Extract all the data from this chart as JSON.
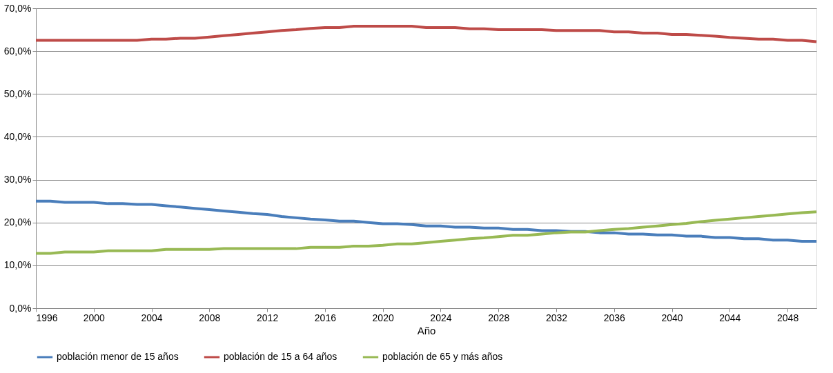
{
  "chart_data": {
    "type": "line",
    "xlabel": "Año",
    "x": [
      1996,
      1997,
      1998,
      1999,
      2000,
      2001,
      2002,
      2003,
      2004,
      2005,
      2006,
      2007,
      2008,
      2009,
      2010,
      2011,
      2012,
      2013,
      2014,
      2015,
      2016,
      2017,
      2018,
      2019,
      2020,
      2021,
      2022,
      2023,
      2024,
      2025,
      2026,
      2027,
      2028,
      2029,
      2030,
      2031,
      2032,
      2033,
      2034,
      2035,
      2036,
      2037,
      2038,
      2039,
      2040,
      2041,
      2042,
      2043,
      2044,
      2045,
      2046,
      2047,
      2048,
      2049,
      2050
    ],
    "xlim": [
      1996,
      2050
    ],
    "xticks": [
      1996,
      2000,
      2004,
      2008,
      2012,
      2016,
      2020,
      2024,
      2028,
      2032,
      2036,
      2040,
      2044,
      2048
    ],
    "ylim": [
      0,
      70
    ],
    "yticks": [
      {
        "value": 0,
        "label": "0,0%"
      },
      {
        "value": 10,
        "label": "10,0%"
      },
      {
        "value": 20,
        "label": "20,0%"
      },
      {
        "value": 30,
        "label": "30,0%"
      },
      {
        "value": 40,
        "label": "40,0%"
      },
      {
        "value": 50,
        "label": "50,0%"
      },
      {
        "value": 60,
        "label": "60,0%"
      },
      {
        "value": 70,
        "label": "70,0%"
      }
    ],
    "grid": "y",
    "legend": "bottom",
    "marker": "none",
    "line_style": "solid",
    "series": [
      {
        "name": "población menor de 15 años",
        "color": "#4a7ebb",
        "values": [
          25,
          25,
          24.7,
          24.7,
          24.7,
          24.4,
          24.4,
          24.2,
          24.2,
          23.9,
          23.6,
          23.3,
          23,
          22.7,
          22.4,
          22.1,
          21.9,
          21.4,
          21.1,
          20.8,
          20.6,
          20.3,
          20.3,
          20,
          19.7,
          19.7,
          19.5,
          19.2,
          19.2,
          18.9,
          18.9,
          18.7,
          18.7,
          18.4,
          18.4,
          18.1,
          18.1,
          17.9,
          17.9,
          17.6,
          17.6,
          17.3,
          17.3,
          17.1,
          17.1,
          16.8,
          16.8,
          16.5,
          16.5,
          16.2,
          16.2,
          15.9,
          15.9,
          15.6,
          15.6
        ]
      },
      {
        "name": "población de 15 a 64 años",
        "color": "#be4b48",
        "values": [
          62.5,
          62.5,
          62.5,
          62.5,
          62.5,
          62.5,
          62.5,
          62.5,
          62.8,
          62.8,
          63,
          63,
          63.3,
          63.6,
          63.9,
          64.2,
          64.5,
          64.8,
          65,
          65.3,
          65.5,
          65.5,
          65.8,
          65.8,
          65.8,
          65.8,
          65.8,
          65.5,
          65.5,
          65.5,
          65.2,
          65.2,
          65,
          65,
          65,
          65,
          64.8,
          64.8,
          64.8,
          64.8,
          64.5,
          64.5,
          64.2,
          64.2,
          63.9,
          63.9,
          63.7,
          63.5,
          63.2,
          63,
          62.8,
          62.8,
          62.5,
          62.5,
          62.2
        ]
      },
      {
        "name": "población de 65 y más años",
        "color": "#98b954",
        "values": [
          12.8,
          12.8,
          13.1,
          13.1,
          13.1,
          13.4,
          13.4,
          13.4,
          13.4,
          13.7,
          13.7,
          13.7,
          13.7,
          13.9,
          13.9,
          13.9,
          13.9,
          13.9,
          13.9,
          14.2,
          14.2,
          14.2,
          14.5,
          14.5,
          14.7,
          15,
          15,
          15.3,
          15.6,
          15.9,
          16.2,
          16.4,
          16.7,
          17,
          17,
          17.3,
          17.6,
          17.8,
          17.8,
          18.1,
          18.4,
          18.6,
          18.9,
          19.2,
          19.5,
          19.8,
          20.2,
          20.5,
          20.8,
          21.1,
          21.4,
          21.7,
          22,
          22.3,
          22.5
        ]
      }
    ]
  }
}
